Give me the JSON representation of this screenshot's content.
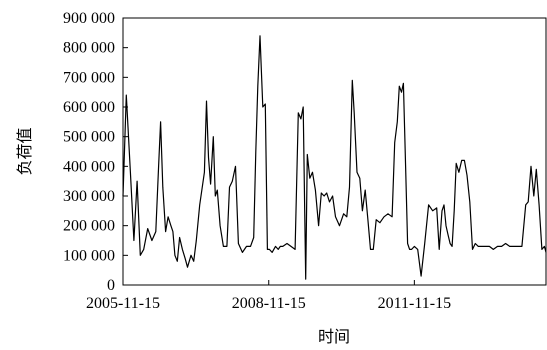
{
  "chart_data": {
    "type": "line",
    "xlabel": "时间",
    "ylabel": "负荷值",
    "ylim": [
      0,
      900000
    ],
    "yticks": [
      0,
      100000,
      200000,
      300000,
      400000,
      500000,
      600000,
      700000,
      800000,
      900000
    ],
    "ytick_labels": [
      "0",
      "100 000",
      "200 000",
      "300 000",
      "400 000",
      "500 000",
      "600 000",
      "700 000",
      "800 000",
      "900 000"
    ],
    "xlim": [
      "2005-11-15",
      "2014-08-01"
    ],
    "xticks": [
      "2005-11-15",
      "2008-11-15",
      "2011-11-15"
    ],
    "xtick_labels": [
      "2005-11-15",
      "2008-11-15",
      "2011-11-15"
    ],
    "grid": false,
    "legend": "none",
    "line_color": "#000000",
    "series": [
      {
        "x": [
          "2005-11-15",
          "2005-12-10",
          "2006-01-10",
          "2006-02-05",
          "2006-03-01",
          "2006-03-25",
          "2006-04-20",
          "2006-05-20",
          "2006-06-20",
          "2006-07-20",
          "2006-08-10",
          "2006-08-25",
          "2006-09-10",
          "2006-10-01",
          "2006-10-20",
          "2006-11-10",
          "2006-11-25",
          "2006-12-10",
          "2006-12-28",
          "2007-01-15",
          "2007-02-05",
          "2007-02-25",
          "2007-03-15",
          "2007-04-10",
          "2007-05-01",
          "2007-05-20",
          "2007-06-15",
          "2007-07-20",
          "2007-08-05",
          "2007-08-20",
          "2007-09-05",
          "2007-09-25",
          "2007-10-10",
          "2007-10-25",
          "2007-11-15",
          "2007-12-10",
          "2008-01-05",
          "2008-01-25",
          "2008-02-15",
          "2008-03-10",
          "2008-04-01",
          "2008-05-01",
          "2008-06-01",
          "2008-07-01",
          "2008-07-25",
          "2008-08-10",
          "2008-08-25",
          "2008-09-10",
          "2008-10-01",
          "2008-10-20",
          "2008-11-05",
          "2008-11-20",
          "2008-12-10",
          "2009-01-05",
          "2009-01-25",
          "2009-02-10",
          "2009-03-01",
          "2009-04-01",
          "2009-05-01",
          "2009-06-01",
          "2009-06-25",
          "2009-07-15",
          "2009-08-01",
          "2009-08-20",
          "2009-09-01",
          "2009-09-20",
          "2009-10-10",
          "2009-11-01",
          "2009-11-25",
          "2009-12-15",
          "2010-01-05",
          "2010-01-25",
          "2010-02-15",
          "2010-03-10",
          "2010-04-01",
          "2010-05-01",
          "2010-06-01",
          "2010-06-25",
          "2010-07-15",
          "2010-08-05",
          "2010-08-20",
          "2010-09-10",
          "2010-10-01",
          "2010-10-20",
          "2010-11-10",
          "2010-12-01",
          "2010-12-20",
          "2011-01-10",
          "2011-02-01",
          "2011-03-01",
          "2011-04-01",
          "2011-05-01",
          "2011-06-01",
          "2011-06-20",
          "2011-07-10",
          "2011-07-25",
          "2011-08-10",
          "2011-08-25",
          "2011-09-10",
          "2011-09-25",
          "2011-10-10",
          "2011-10-25",
          "2011-11-15",
          "2011-12-10",
          "2012-01-05",
          "2012-02-01",
          "2012-03-01",
          "2012-04-01",
          "2012-05-01",
          "2012-05-20",
          "2012-06-10",
          "2012-06-25",
          "2012-07-10",
          "2012-07-25",
          "2012-08-10",
          "2012-08-25",
          "2012-09-10",
          "2012-09-25",
          "2012-10-15",
          "2012-11-05",
          "2012-11-25",
          "2012-12-15",
          "2013-01-05",
          "2013-01-25",
          "2013-02-15",
          "2013-03-10",
          "2013-04-01",
          "2013-05-01",
          "2013-06-01",
          "2013-07-01",
          "2013-08-01",
          "2013-09-01",
          "2013-10-01",
          "2013-11-01",
          "2013-12-01",
          "2014-01-01",
          "2014-02-01",
          "2014-03-01",
          "2014-03-20",
          "2014-04-10",
          "2014-05-01",
          "2014-05-20",
          "2014-06-10",
          "2014-07-01",
          "2014-07-20",
          "2014-08-01"
        ],
        "values": [
          300000,
          640000,
          380000,
          150000,
          350000,
          100000,
          120000,
          190000,
          150000,
          180000,
          400000,
          550000,
          330000,
          180000,
          230000,
          200000,
          180000,
          100000,
          80000,
          160000,
          120000,
          90000,
          60000,
          100000,
          80000,
          150000,
          270000,
          380000,
          620000,
          430000,
          340000,
          500000,
          300000,
          320000,
          200000,
          130000,
          130000,
          330000,
          350000,
          400000,
          140000,
          110000,
          130000,
          130000,
          160000,
          450000,
          670000,
          840000,
          600000,
          610000,
          120000,
          120000,
          110000,
          130000,
          120000,
          130000,
          130000,
          140000,
          130000,
          120000,
          580000,
          560000,
          600000,
          20000,
          440000,
          360000,
          380000,
          320000,
          200000,
          310000,
          300000,
          310000,
          280000,
          300000,
          230000,
          200000,
          240000,
          230000,
          330000,
          690000,
          580000,
          380000,
          360000,
          250000,
          320000,
          220000,
          120000,
          120000,
          220000,
          210000,
          230000,
          240000,
          230000,
          480000,
          550000,
          670000,
          650000,
          680000,
          400000,
          140000,
          120000,
          120000,
          130000,
          120000,
          30000,
          140000,
          270000,
          250000,
          260000,
          120000,
          250000,
          270000,
          200000,
          170000,
          140000,
          130000,
          250000,
          410000,
          380000,
          420000,
          420000,
          370000,
          280000,
          120000,
          140000,
          130000,
          130000,
          130000,
          130000,
          120000,
          130000,
          130000,
          140000,
          130000,
          130000,
          130000,
          130000,
          270000,
          280000,
          400000,
          300000,
          390000,
          270000,
          120000,
          130000,
          110000
        ]
      }
    ]
  }
}
